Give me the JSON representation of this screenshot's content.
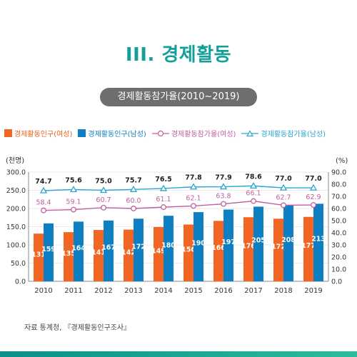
{
  "header": {
    "section_title": "III. 경제활동",
    "subtitle": "경제활동참가율(2010~2019)"
  },
  "legend": {
    "female_pop": "경제활동인구(여성)",
    "male_pop": "경제활동인구(남성)",
    "female_rate": "경제활동참가율(여성)",
    "male_rate": "경제활동참가율(남성)"
  },
  "colors": {
    "female_bar": "#f26522",
    "male_bar": "#0e7fc3",
    "female_rate": "#c0609f",
    "male_rate": "#2aa6cf",
    "accent": "#14a09a"
  },
  "source": "자료 통계청, 『경제활동인구조사』",
  "chart_data": {
    "type": "bar",
    "categories": [
      "2010",
      "2011",
      "2012",
      "2013",
      "2014",
      "2015",
      "2016",
      "2017",
      "2018",
      "2019"
    ],
    "ylabel_left": "(천명)",
    "ylabel_right": "(%)",
    "ylim_left": [
      0,
      300
    ],
    "ylim_right": [
      0,
      90
    ],
    "yticks_left": [
      "0.0",
      "50.0",
      "100.0",
      "150.0",
      "200.0",
      "250.0",
      "300.0"
    ],
    "yticks_right": [
      "0.0",
      "10.0",
      "20.0",
      "30.0",
      "40.0",
      "50.0",
      "60.0",
      "70.0",
      "80.0",
      "90.0"
    ],
    "bar_series": [
      {
        "name": "경제활동인구(여성)",
        "values": [
          131,
          135,
          141,
          142,
          149,
          156,
          166,
          176,
          172,
          177
        ]
      },
      {
        "name": "경제활동인구(남성)",
        "values": [
          159,
          164,
          167,
          172,
          180,
          190,
          197,
          205,
          208,
          213
        ]
      }
    ],
    "line_series": [
      {
        "name": "경제활동참가율(여성)",
        "values": [
          58.4,
          59.1,
          60.7,
          60.0,
          61.1,
          62.1,
          63.8,
          66.1,
          62.7,
          62.9
        ]
      },
      {
        "name": "경제활동참가율(남성)",
        "values": [
          74.7,
          75.6,
          75.0,
          75.7,
          76.5,
          77.8,
          77.9,
          78.6,
          77.0,
          77.0
        ]
      }
    ]
  }
}
